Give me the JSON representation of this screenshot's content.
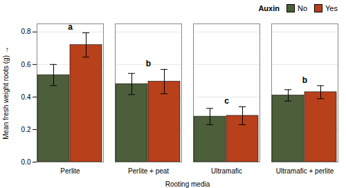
{
  "chart_data": {
    "type": "bar",
    "categories": [
      "Perlite",
      "Perlite + peat",
      "Ultramafic",
      "Ultramafic + perlite"
    ],
    "series": [
      {
        "name": "No",
        "color": "#4d5e3a",
        "values": [
          0.535,
          0.48,
          0.28,
          0.41
        ],
        "errors": [
          0.065,
          0.065,
          0.05,
          0.035
        ]
      },
      {
        "name": "Yes",
        "color": "#b8401a",
        "values": [
          0.72,
          0.495,
          0.285,
          0.43
        ],
        "errors": [
          0.075,
          0.075,
          0.055,
          0.04
        ]
      }
    ],
    "significance_labels": [
      "a",
      "b",
      "c",
      "b"
    ],
    "xlabel": "Rooting media",
    "ylabel": "Mean fresh weight roots (g)",
    "legend_title": "Auxin",
    "legend": "upper right",
    "ylim": [
      0.0,
      0.85
    ],
    "yticks": [
      0.0,
      0.2,
      0.4,
      0.6,
      0.8
    ],
    "grid": true
  }
}
